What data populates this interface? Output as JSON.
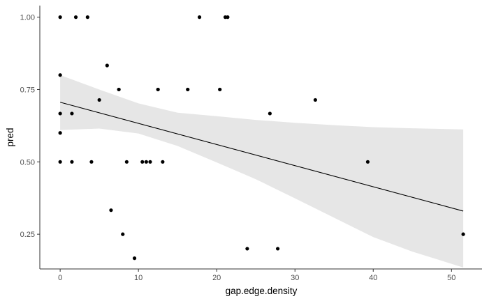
{
  "chart_data": {
    "type": "scatter",
    "xlabel": "gap.edge.density",
    "ylabel": "pred",
    "xlim": [
      -2.6,
      53.9
    ],
    "ylim": [
      0.13,
      1.04
    ],
    "x_ticks": [
      0,
      10,
      20,
      30,
      40,
      50
    ],
    "y_ticks": [
      0.25,
      0.5,
      0.75,
      1.0
    ],
    "x_tick_labels": [
      "0",
      "10",
      "20",
      "30",
      "40",
      "50"
    ],
    "y_tick_labels": [
      "0.25",
      "0.50",
      "0.75",
      "1.00"
    ],
    "grid": false,
    "points": [
      {
        "x": 0.0,
        "y": 1.0
      },
      {
        "x": 2.0,
        "y": 1.0
      },
      {
        "x": 3.5,
        "y": 1.0
      },
      {
        "x": 17.8,
        "y": 1.0
      },
      {
        "x": 21.1,
        "y": 1.0
      },
      {
        "x": 21.4,
        "y": 1.0
      },
      {
        "x": 0.0,
        "y": 0.8
      },
      {
        "x": 6.0,
        "y": 0.833
      },
      {
        "x": 7.5,
        "y": 0.75
      },
      {
        "x": 12.5,
        "y": 0.75
      },
      {
        "x": 16.3,
        "y": 0.75
      },
      {
        "x": 20.4,
        "y": 0.75
      },
      {
        "x": 5.0,
        "y": 0.714
      },
      {
        "x": 32.6,
        "y": 0.714
      },
      {
        "x": 0.0,
        "y": 0.667
      },
      {
        "x": 1.5,
        "y": 0.667
      },
      {
        "x": 26.8,
        "y": 0.667
      },
      {
        "x": 0.0,
        "y": 0.6
      },
      {
        "x": 0.0,
        "y": 0.5
      },
      {
        "x": 1.5,
        "y": 0.5
      },
      {
        "x": 4.0,
        "y": 0.5
      },
      {
        "x": 8.5,
        "y": 0.5
      },
      {
        "x": 10.5,
        "y": 0.5
      },
      {
        "x": 11.0,
        "y": 0.5
      },
      {
        "x": 11.5,
        "y": 0.5
      },
      {
        "x": 13.1,
        "y": 0.5
      },
      {
        "x": 39.3,
        "y": 0.5
      },
      {
        "x": 6.5,
        "y": 0.333
      },
      {
        "x": 8.0,
        "y": 0.25
      },
      {
        "x": 51.5,
        "y": 0.25
      },
      {
        "x": 9.5,
        "y": 0.167
      },
      {
        "x": 23.9,
        "y": 0.2
      },
      {
        "x": 27.8,
        "y": 0.2
      }
    ],
    "fit": {
      "x": [
        0,
        51.5
      ],
      "y": [
        0.706,
        0.33
      ]
    },
    "ribbon": {
      "x": [
        0,
        5,
        10,
        15,
        20,
        25,
        30,
        35,
        40,
        45,
        51.5
      ],
      "lower": [
        0.61,
        0.615,
        0.598,
        0.555,
        0.498,
        0.44,
        0.374,
        0.307,
        0.24,
        0.19,
        0.135
      ],
      "upper": [
        0.8,
        0.75,
        0.702,
        0.67,
        0.658,
        0.645,
        0.635,
        0.627,
        0.62,
        0.616,
        0.612
      ]
    },
    "colors": {
      "point": "#000000",
      "line": "#000000",
      "ribbon": "#e6e6e6",
      "axis": "#333333",
      "tick_text": "#4d4d4d"
    }
  }
}
